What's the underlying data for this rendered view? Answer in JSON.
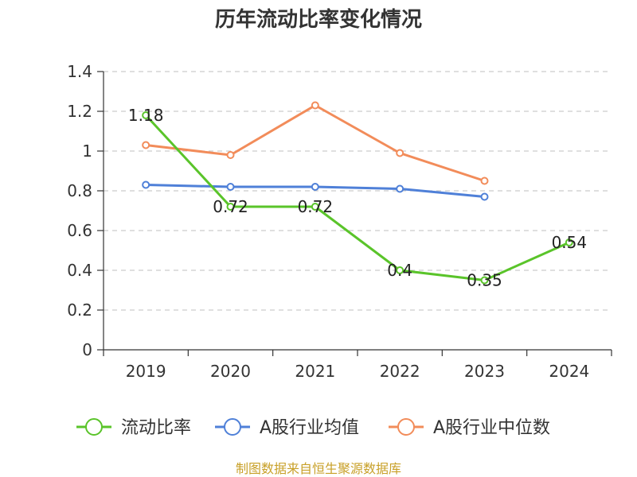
{
  "chart_data": {
    "type": "line",
    "title": "历年流动比率变化情况",
    "categories": [
      "2019",
      "2020",
      "2021",
      "2022",
      "2023",
      "2024"
    ],
    "y_ticks": [
      "0",
      "0.2",
      "0.4",
      "0.6",
      "0.8",
      "1",
      "1.2",
      "1.4"
    ],
    "ylim": [
      0,
      1.4
    ],
    "grid": true,
    "legend_position": "bottom",
    "series": [
      {
        "name": "流动比率",
        "color": "#5ac42a",
        "values": [
          1.18,
          0.72,
          0.72,
          0.4,
          0.35,
          0.54
        ],
        "labels": [
          "1.18",
          "0.72",
          "0.72",
          "0.4",
          "0.35",
          "0.54"
        ],
        "show_labels": true
      },
      {
        "name": "A股行业均值",
        "color": "#4f80d8",
        "values": [
          0.83,
          0.82,
          0.82,
          0.81,
          0.77,
          null
        ],
        "show_labels": false
      },
      {
        "name": "A股行业中位数",
        "color": "#f28c5a",
        "values": [
          1.03,
          0.98,
          1.23,
          0.99,
          0.85,
          null
        ],
        "show_labels": false
      }
    ]
  },
  "footer": {
    "source": "制图数据来自恒生聚源数据库"
  }
}
